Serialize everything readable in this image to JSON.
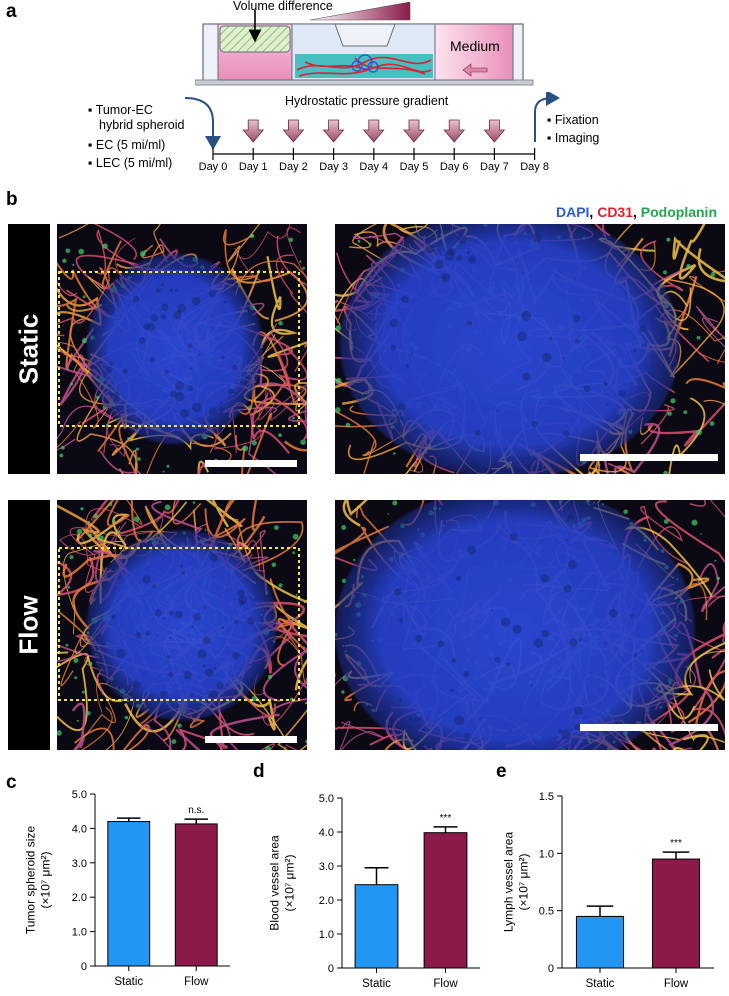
{
  "panel_labels": {
    "a": "a",
    "b": "b",
    "c": "c",
    "d": "d",
    "e": "e"
  },
  "schematic": {
    "volume_difference": "Volume difference",
    "medium": "Medium",
    "hydrostatic": "Hydrostatic pressure gradient",
    "left_items": [
      "Tumor-EC",
      "hybrid spheroid",
      "EC (5 mi/ml)",
      "LEC (5 mi/ml)"
    ],
    "right_items": [
      "Fixation",
      "Imaging"
    ],
    "days": [
      "Day 0",
      "Day 1",
      "Day 2",
      "Day 3",
      "Day 4",
      "Day 5",
      "Day 6",
      "Day 7",
      "Day 8"
    ]
  },
  "microscopy": {
    "legend": [
      {
        "text": "DAPI",
        "color": "#2a5bd7"
      },
      {
        "text": ", ",
        "color": "#000000"
      },
      {
        "text": "CD31",
        "color": "#e0202a"
      },
      {
        "text": ", ",
        "color": "#000000"
      },
      {
        "text": "Podoplanin",
        "color": "#1faa4a"
      }
    ],
    "rows": [
      "Static",
      "Flow"
    ]
  },
  "chart_data": [
    {
      "type": "bar",
      "panel": "c",
      "categories": [
        "Static",
        "Flow"
      ],
      "values": [
        4.2,
        4.13
      ],
      "errors": [
        0.1,
        0.14
      ],
      "colors": [
        "#2196f3",
        "#8b1a4a"
      ],
      "ylabel_line1": "Tumor spheroid size",
      "ylabel_line2": "(×10⁷ μm²)",
      "ylim": [
        0,
        5.0
      ],
      "yticks": [
        "0",
        "1.0",
        "2.0",
        "3.0",
        "4.0",
        "5.0"
      ],
      "annotation": "n.s."
    },
    {
      "type": "bar",
      "panel": "d",
      "categories": [
        "Static",
        "Flow"
      ],
      "values": [
        2.45,
        3.98
      ],
      "errors": [
        0.5,
        0.17
      ],
      "colors": [
        "#2196f3",
        "#8b1a4a"
      ],
      "ylabel_line1": "Blood vessel area",
      "ylabel_line2": "(×10⁷ μm²)",
      "ylim": [
        0,
        5.0
      ],
      "yticks": [
        "0",
        "1.0",
        "2.0",
        "3.0",
        "4.0",
        "5.0"
      ],
      "annotation": "***"
    },
    {
      "type": "bar",
      "panel": "e",
      "categories": [
        "Static",
        "Flow"
      ],
      "values": [
        0.45,
        0.95
      ],
      "errors": [
        0.09,
        0.06
      ],
      "colors": [
        "#2196f3",
        "#8b1a4a"
      ],
      "ylabel_line1": "Lymph vessel area",
      "ylabel_line2": "(×10⁷ μm²)",
      "ylim": [
        0,
        1.5
      ],
      "yticks": [
        "0",
        "0.5",
        "1.0",
        "1.5"
      ],
      "annotation": "***"
    }
  ]
}
